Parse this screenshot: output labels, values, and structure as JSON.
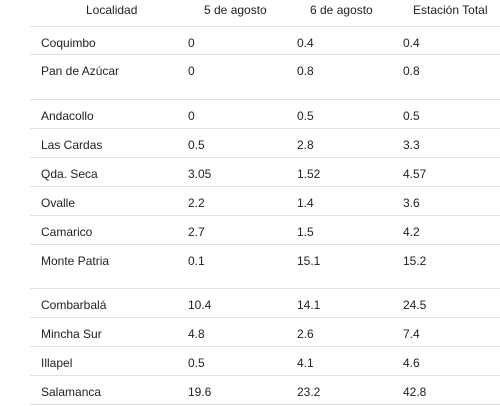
{
  "table": {
    "headers": [
      "Localidad",
      "5 de agosto",
      "6 de agosto",
      "Estación Total"
    ],
    "rows": [
      [
        "Coquimbo",
        "0",
        "0.4",
        "0.4"
      ],
      [
        "Pan de Azúcar",
        "0",
        "0.8",
        "0.8"
      ],
      [
        "Andacollo",
        "0",
        "0.5",
        "0.5"
      ],
      [
        "Las Cardas",
        "0.5",
        "2.8",
        "3.3"
      ],
      [
        "Qda. Seca",
        "3.05",
        "1.52",
        "4.57"
      ],
      [
        "Ovalle",
        "2.2",
        "1.4",
        "3.6"
      ],
      [
        "Camarico",
        "2.7",
        "1.5",
        "4.2"
      ],
      [
        "Monte Patria",
        "0.1",
        "15.1",
        "15.2"
      ],
      [
        "Combarbalá",
        "10.4",
        "14.1",
        "24.5"
      ],
      [
        "Mincha Sur",
        "4.8",
        "2.6",
        "7.4"
      ],
      [
        "Illapel",
        "0.5",
        "4.1",
        "4.6"
      ],
      [
        "Salamanca",
        "19.6",
        "23.2",
        "42.8"
      ]
    ]
  }
}
